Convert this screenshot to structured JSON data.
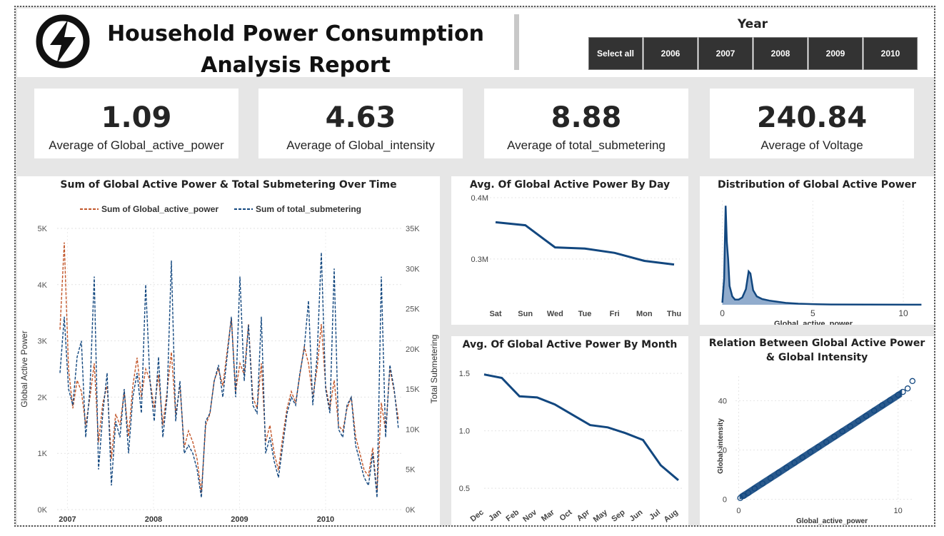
{
  "header": {
    "title_line1": "Household Power Consumption",
    "title_line2": "Analysis Report",
    "logo_icon": "lightning-bolt-icon"
  },
  "year_slicer": {
    "label": "Year",
    "options": [
      "Select all",
      "2006",
      "2007",
      "2008",
      "2009",
      "2010"
    ]
  },
  "kpis": [
    {
      "value": "1.09",
      "label": "Average of Global_active_power"
    },
    {
      "value": "4.63",
      "label": "Average of Global_intensity"
    },
    {
      "value": "8.88",
      "label": "Average of total_submetering"
    },
    {
      "value": "240.84",
      "label": "Average of Voltage"
    }
  ],
  "colors": {
    "blue": "#12477f",
    "orange": "#c2562a",
    "slicer_bg": "#333333",
    "canvas_bg": "#e6e6e6"
  },
  "chart_data": [
    {
      "type": "line",
      "title": "Sum of Global Active Power & Total Submetering Over Time",
      "ylabel": "Global Active Power",
      "y2label": "Total Submetering",
      "ylim": [
        0,
        5000
      ],
      "y2lim": [
        0,
        35000
      ],
      "y_ticks": [
        "0K",
        "1K",
        "2K",
        "3K",
        "4K",
        "5K"
      ],
      "y2_ticks": [
        "0K",
        "5K",
        "10K",
        "15K",
        "20K",
        "25K",
        "30K",
        "35K"
      ],
      "x_ticks": [
        "2007",
        "2008",
        "2009",
        "2010"
      ],
      "legend_position": "top",
      "series": [
        {
          "name": "Sum of Global_active_power",
          "color": "#c2562a",
          "style": "dashed",
          "values": [
            3200,
            4750,
            2500,
            1800,
            2300,
            2100,
            1500,
            2000,
            2600,
            1200,
            1900,
            2200,
            900,
            1700,
            1500,
            2100,
            1300,
            2200,
            2700,
            2000,
            2500,
            2300,
            1800,
            2400,
            1500,
            2100,
            2800,
            1700,
            2200,
            1100,
            1400,
            1200,
            900,
            300,
            1500,
            1700,
            2300,
            2500,
            2200,
            2800,
            3400,
            2100,
            2600,
            2400,
            3300,
            2000,
            1800,
            2600,
            1200,
            1500,
            1000,
            700,
            1300,
            1800,
            2100,
            1900,
            2400,
            2900,
            2600,
            2000,
            2500,
            3300,
            2200,
            1800,
            2300,
            1500,
            1400,
            1800,
            2000,
            1300,
            1000,
            700,
            600,
            1100,
            300,
            1900,
            1400,
            2500,
            2100,
            1600
          ]
        },
        {
          "name": "Sum of total_submetering",
          "color": "#12477f",
          "style": "dashed",
          "values": [
            17000,
            24000,
            15000,
            13000,
            19000,
            21000,
            9000,
            15000,
            29000,
            5000,
            12000,
            17000,
            3000,
            11000,
            9000,
            15000,
            7000,
            14000,
            17000,
            12000,
            28000,
            16000,
            11000,
            19000,
            9000,
            14000,
            31000,
            11000,
            16000,
            7000,
            8000,
            7000,
            5000,
            1500,
            11000,
            12000,
            16000,
            18000,
            14000,
            19000,
            24000,
            14000,
            29000,
            16000,
            23000,
            13000,
            12000,
            24000,
            7000,
            9000,
            6000,
            4000,
            8000,
            12000,
            14000,
            13000,
            17000,
            20000,
            26000,
            13000,
            19000,
            32000,
            15000,
            12000,
            30000,
            10000,
            9000,
            13000,
            14000,
            8000,
            6000,
            4000,
            3000,
            7000,
            1500,
            29000,
            9000,
            18000,
            15000,
            10000
          ]
        }
      ]
    },
    {
      "type": "line",
      "title": "Avg. Of Global Active Power By Day",
      "categories": [
        "Sat",
        "Sun",
        "Wed",
        "Tue",
        "Fri",
        "Mon",
        "Thu"
      ],
      "values": [
        0.36,
        0.355,
        0.319,
        0.317,
        0.31,
        0.297,
        0.291
      ],
      "ylim": [
        0.23,
        0.4
      ],
      "y_ticks": [
        {
          "v": 0.4,
          "label": "0.4M"
        },
        {
          "v": 0.3,
          "label": "0.3M"
        }
      ]
    },
    {
      "type": "line",
      "title": "Avg. Of Global Active Power By Month",
      "categories": [
        "Dec",
        "Jan",
        "Feb",
        "Nov",
        "Mar",
        "Oct",
        "Apr",
        "May",
        "Sep",
        "Jun",
        "Jul",
        "Aug"
      ],
      "values": [
        1.49,
        1.46,
        1.3,
        1.29,
        1.23,
        1.14,
        1.05,
        1.03,
        0.98,
        0.92,
        0.7,
        0.57
      ],
      "ylim": [
        0.42,
        1.6
      ],
      "y_ticks": [
        {
          "v": 1.5,
          "label": "1.5"
        },
        {
          "v": 1.0,
          "label": "1.0"
        },
        {
          "v": 0.5,
          "label": "0.5"
        }
      ]
    },
    {
      "type": "area",
      "title": "Distribution of Global Active Power",
      "xlabel": "Global_active_power",
      "x_ticks": [
        0,
        5,
        10
      ],
      "xlim": [
        -0.3,
        11.3
      ],
      "x": [
        0.0,
        0.1,
        0.18,
        0.25,
        0.32,
        0.4,
        0.55,
        0.7,
        0.9,
        1.1,
        1.3,
        1.45,
        1.55,
        1.7,
        1.9,
        2.2,
        2.6,
        3.0,
        3.5,
        4.2,
        5.0,
        6.0,
        8.0,
        11.0
      ],
      "density": [
        0.02,
        0.25,
        0.95,
        0.6,
        0.44,
        0.18,
        0.08,
        0.05,
        0.05,
        0.07,
        0.15,
        0.32,
        0.3,
        0.14,
        0.08,
        0.055,
        0.04,
        0.03,
        0.018,
        0.01,
        0.006,
        0.003,
        0.002,
        0.001
      ]
    },
    {
      "type": "scatter",
      "title": "Relation Between Global Active Power & Global Intensity",
      "xlabel": "Global_active_power",
      "ylabel": "Global_intensity",
      "x_ticks": [
        0,
        10
      ],
      "y_ticks": [
        0,
        20,
        40
      ],
      "xlim": [
        -0.2,
        11
      ],
      "ylim": [
        -1,
        50
      ],
      "relation": {
        "slope": 4.2,
        "intercept": 0.2
      },
      "points": [
        [
          0.1,
          0.5
        ],
        [
          0.3,
          1.4
        ],
        [
          0.6,
          2.6
        ],
        [
          1.0,
          4.4
        ],
        [
          1.5,
          6.4
        ],
        [
          2.0,
          8.6
        ],
        [
          2.5,
          10.8
        ],
        [
          3.0,
          12.8
        ],
        [
          3.5,
          14.8
        ],
        [
          4.0,
          17.0
        ],
        [
          4.5,
          19.2
        ],
        [
          5.0,
          21.2
        ],
        [
          5.5,
          23.2
        ],
        [
          6.0,
          25.4
        ],
        [
          6.5,
          27.6
        ],
        [
          7.0,
          29.6
        ],
        [
          7.5,
          31.8
        ],
        [
          8.0,
          33.8
        ],
        [
          8.5,
          36.0
        ],
        [
          9.0,
          38.2
        ],
        [
          9.5,
          40.2
        ],
        [
          10.0,
          42.4
        ],
        [
          10.3,
          43.6
        ],
        [
          10.6,
          45.0
        ],
        [
          10.9,
          48.0
        ]
      ]
    }
  ]
}
